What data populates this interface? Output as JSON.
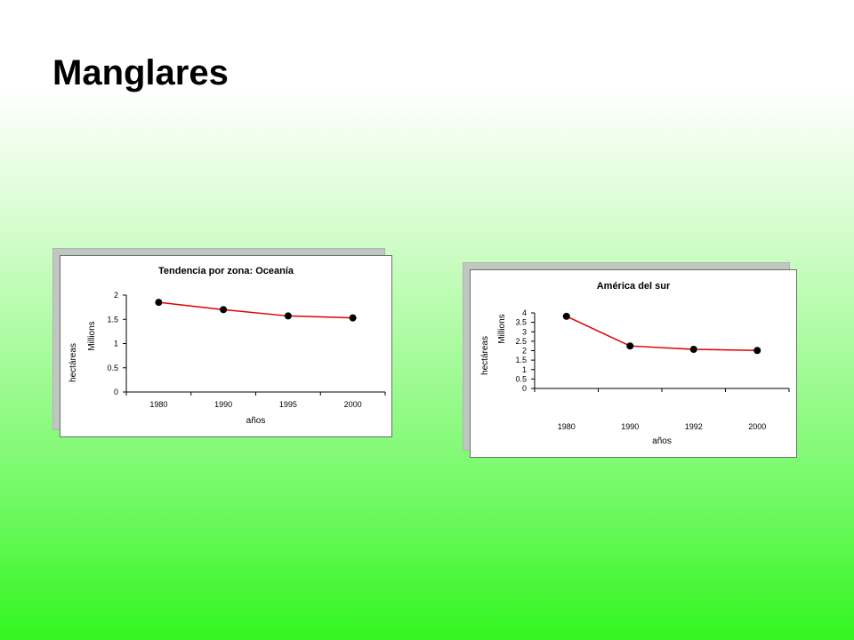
{
  "slide": {
    "title": "Manglares"
  },
  "chart_data": [
    {
      "type": "line",
      "title": "Tendencia por zona: Oceanía",
      "xlabel": "años",
      "ylabel": "hectáreas",
      "yunit": "Millions",
      "categories": [
        "1980",
        "1990",
        "1995",
        "2000"
      ],
      "series": [
        {
          "values": [
            1.85,
            1.7,
            1.57,
            1.53
          ]
        }
      ],
      "ylim": [
        0,
        2
      ],
      "yticks": [
        "0",
        "0.5",
        "1",
        "1.5",
        "2"
      ],
      "grid": false,
      "legend": "none",
      "line_color": "#e00000",
      "marker_color": "#000000"
    },
    {
      "type": "line",
      "title": "América del sur",
      "xlabel": "años",
      "ylabel": "hectáreas",
      "yunit": "Millions",
      "categories": [
        "1980",
        "1990",
        "1992",
        "2000"
      ],
      "series": [
        {
          "values": [
            3.82,
            2.25,
            2.07,
            2.01
          ]
        }
      ],
      "ylim": [
        0,
        4
      ],
      "yticks": [
        "0",
        "0.5",
        "1",
        "1.5",
        "2",
        "2.5",
        "3",
        "3.5",
        "4"
      ],
      "grid": false,
      "legend": "none",
      "line_color": "#e00000",
      "marker_color": "#000000"
    }
  ]
}
